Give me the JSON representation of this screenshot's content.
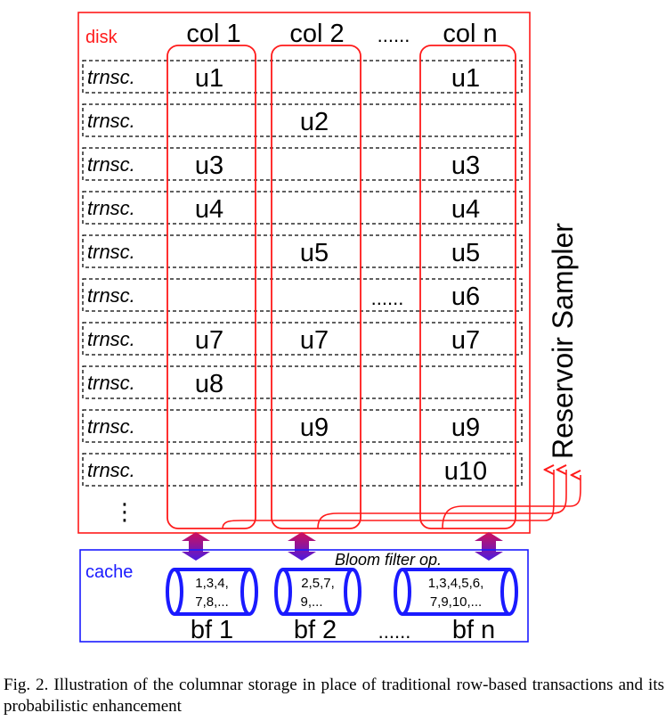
{
  "disk": {
    "label": "disk"
  },
  "cache": {
    "label": "cache",
    "op_label": "Bloom filter op."
  },
  "columns": [
    {
      "header": "col 1",
      "bloom_filter": "bf 1",
      "bf_values": [
        "1,3,4,",
        "7,8,..."
      ]
    },
    {
      "header": "col 2",
      "bloom_filter": "bf 2",
      "bf_values": [
        "2,5,7,",
        "9,..."
      ]
    },
    {
      "header": "col n",
      "bloom_filter": "bf n",
      "bf_values": [
        "1,3,4,5,6,",
        "7,9,10,..."
      ]
    }
  ],
  "ellipsis": "......",
  "vertical_ellipsis": "⋮",
  "row_label": "trnsc.",
  "rows": [
    {
      "c1": "u1",
      "c2": "",
      "cn": "u1"
    },
    {
      "c1": "",
      "c2": "u2",
      "cn": ""
    },
    {
      "c1": "u3",
      "c2": "",
      "cn": "u3"
    },
    {
      "c1": "u4",
      "c2": "",
      "cn": "u4"
    },
    {
      "c1": "",
      "c2": "u5",
      "cn": "u5"
    },
    {
      "c1": "",
      "c2": "",
      "cn": "u6",
      "mid": "......"
    },
    {
      "c1": "u7",
      "c2": "u7",
      "cn": "u7"
    },
    {
      "c1": "u8",
      "c2": "",
      "cn": ""
    },
    {
      "c1": "",
      "c2": "u9",
      "cn": "u9"
    },
    {
      "c1": "",
      "c2": "",
      "cn": "u10"
    }
  ],
  "sampler": {
    "label": "Reservoir Sampler"
  },
  "caption": {
    "text": "Fig. 2.   Illustration of the columnar storage in place of traditional row-based transactions and its probabilistic enhancement"
  },
  "colors": {
    "disk": "#ff1a1a",
    "cache": "#1a1aff",
    "arrow_top": "#d0105a",
    "arrow_bottom": "#5a1ad0"
  }
}
